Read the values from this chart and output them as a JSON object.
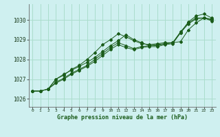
{
  "title": "Graphe pression niveau de la mer (hPa)",
  "bg_color": "#cff0f0",
  "grid_color": "#aaddcc",
  "line_color": "#1a5c1a",
  "x_ticks": [
    0,
    1,
    2,
    3,
    4,
    5,
    6,
    7,
    8,
    9,
    10,
    11,
    12,
    13,
    14,
    15,
    16,
    17,
    18,
    19,
    20,
    21,
    22,
    23
  ],
  "y_ticks": [
    1026,
    1027,
    1028,
    1029,
    1030
  ],
  "ylim": [
    1025.6,
    1030.8
  ],
  "xlim": [
    -0.5,
    23.5
  ],
  "series": [
    {
      "x": [
        0,
        1,
        2,
        3,
        4,
        5,
        6,
        7,
        8,
        9,
        10,
        11,
        12,
        13,
        14,
        15,
        16,
        17,
        18,
        19,
        20,
        21,
        22,
        23
      ],
      "y": [
        1026.4,
        1026.4,
        1026.5,
        1027.0,
        1027.2,
        1027.5,
        1027.7,
        1028.0,
        1028.35,
        1028.75,
        1029.0,
        1029.3,
        1029.15,
        1028.95,
        1028.8,
        1028.75,
        1028.8,
        1028.85,
        1028.85,
        1029.35,
        1029.9,
        1030.2,
        1030.3,
        1030.1
      ]
    },
    {
      "x": [
        2,
        3,
        4,
        5,
        6,
        7,
        8,
        9,
        10,
        11,
        12,
        13,
        14,
        15,
        16,
        17,
        18,
        19,
        20,
        21,
        22,
        23
      ],
      "y": [
        1026.5,
        1027.0,
        1027.25,
        1027.45,
        1027.65,
        1027.85,
        1028.1,
        1028.4,
        1028.7,
        1028.95,
        1029.25,
        1029.0,
        1028.85,
        1028.7,
        1028.75,
        1028.8,
        1028.85,
        1028.9,
        1029.5,
        1029.85,
        1030.1,
        1030.05
      ]
    },
    {
      "x": [
        0,
        1,
        2,
        3,
        4,
        5,
        6,
        7,
        8,
        9,
        10,
        11,
        12,
        13,
        14,
        15,
        16,
        17,
        18,
        19,
        20,
        21,
        22,
        23
      ],
      "y": [
        1026.4,
        1026.4,
        1026.5,
        1026.85,
        1027.05,
        1027.3,
        1027.5,
        1027.7,
        1028.0,
        1028.3,
        1028.6,
        1028.85,
        1028.7,
        1028.55,
        1028.65,
        1028.7,
        1028.7,
        1028.8,
        1028.85,
        1029.4,
        1029.85,
        1030.1,
        1030.1,
        1030.0
      ]
    },
    {
      "x": [
        0,
        1,
        2,
        3,
        4,
        5,
        6,
        7,
        8,
        9,
        10,
        11,
        12,
        13,
        14,
        15,
        16,
        17,
        18,
        19,
        20,
        21,
        22,
        23
      ],
      "y": [
        1026.4,
        1026.4,
        1026.5,
        1026.8,
        1027.0,
        1027.25,
        1027.45,
        1027.65,
        1027.9,
        1028.2,
        1028.5,
        1028.75,
        1028.6,
        1028.5,
        1028.6,
        1028.65,
        1028.65,
        1028.75,
        1028.8,
        1029.35,
        1029.8,
        1030.05,
        1030.1,
        1029.95
      ]
    }
  ]
}
